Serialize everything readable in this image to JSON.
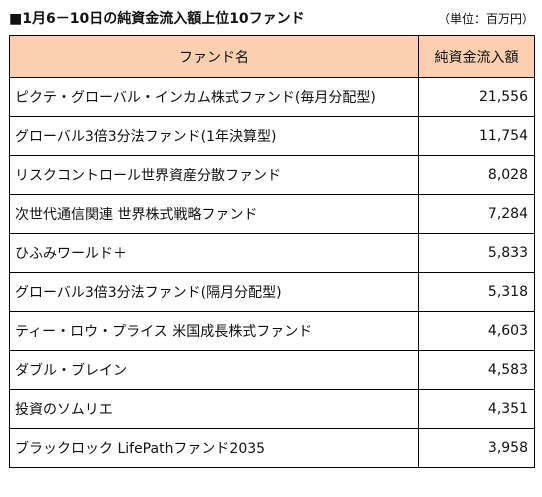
{
  "title": "■1月6－10日の純資金流入額上位10ファンド",
  "unit": "（単位：百万円）",
  "table": {
    "headers": [
      "ファンド名",
      "純資金流入額"
    ],
    "rows": [
      {
        "name": "ピクテ・グローバル・インカム株式ファンド(毎月分配型)",
        "value": "21,556"
      },
      {
        "name": "グローバル3倍3分法ファンド(1年決算型)",
        "value": "11,754"
      },
      {
        "name": "リスクコントロール世界資産分散ファンド",
        "value": "8,028"
      },
      {
        "name": "次世代通信関連 世界株式戦略ファンド",
        "value": "7,284"
      },
      {
        "name": "ひふみワールド＋",
        "value": "5,833"
      },
      {
        "name": "グローバル3倍3分法ファンド(隔月分配型)",
        "value": "5,318"
      },
      {
        "name": "ティー・ロウ・プライス 米国成長株式ファンド",
        "value": "4,603"
      },
      {
        "name": "ダブル・ブレイン",
        "value": "4,583"
      },
      {
        "name": "投資のソムリエ",
        "value": "4,351"
      },
      {
        "name": "ブラックロック LifePathファンド2035",
        "value": "3,958"
      }
    ]
  },
  "colors": {
    "header_bg": "#fbcfb0",
    "border": "#000000"
  }
}
